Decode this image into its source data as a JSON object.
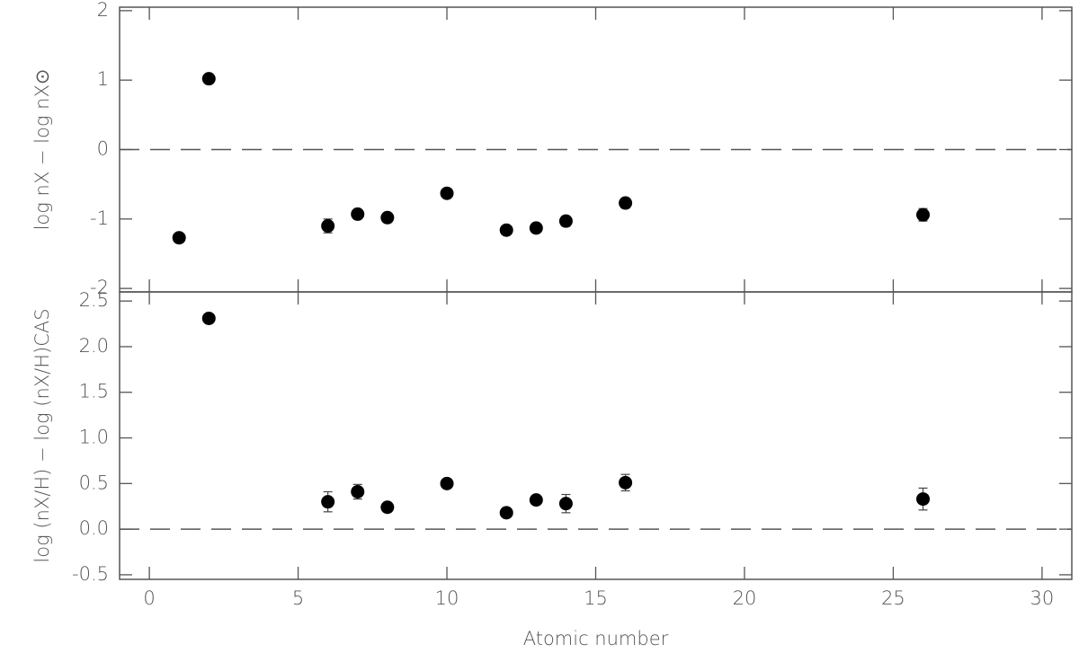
{
  "chart_data": [
    {
      "type": "scatter",
      "ylabel": "log nX − log nX⊙",
      "x": [
        1,
        2,
        6,
        7,
        8,
        10,
        12,
        13,
        14,
        16,
        26
      ],
      "values": [
        -1.27,
        1.02,
        -1.1,
        -0.93,
        -0.98,
        -0.63,
        -1.16,
        -1.13,
        -1.03,
        -0.77,
        -0.94
      ],
      "errors": [
        null,
        null,
        0.1,
        0.06,
        null,
        null,
        null,
        null,
        0.07,
        0.07,
        0.09
      ],
      "color": "#000000",
      "xlim": [
        -1,
        31
      ],
      "xticks": [
        0,
        5,
        10,
        15,
        20,
        25,
        30
      ],
      "show_xticklabels": false,
      "ylim": [
        -2.05,
        2.05
      ],
      "yticks": [
        -2,
        -1,
        0,
        1,
        2
      ],
      "reference_line": 0
    },
    {
      "type": "scatter",
      "ylabel": "log (nX/H) − log (nX/H)CAS",
      "xlabel": "Atomic number",
      "x": [
        2,
        6,
        7,
        8,
        10,
        12,
        13,
        14,
        16,
        26
      ],
      "values": [
        2.31,
        0.3,
        0.41,
        0.24,
        0.5,
        0.18,
        0.32,
        0.28,
        0.51,
        0.33
      ],
      "errors": [
        null,
        0.11,
        0.08,
        0.05,
        null,
        null,
        null,
        0.1,
        0.09,
        0.12
      ],
      "color": "#000000",
      "xlim": [
        -1,
        31
      ],
      "xticks": [
        0,
        5,
        10,
        15,
        20,
        25,
        30
      ],
      "show_xticklabels": true,
      "ylim": [
        -0.55,
        2.6
      ],
      "yticks": [
        -0.5,
        {
          "value": 0,
          "label": "0.0"
        },
        0.5,
        {
          "value": 1,
          "label": "1.0"
        },
        1.5,
        {
          "value": 2,
          "label": "2.0"
        },
        2.5
      ],
      "reference_line": 0
    }
  ]
}
